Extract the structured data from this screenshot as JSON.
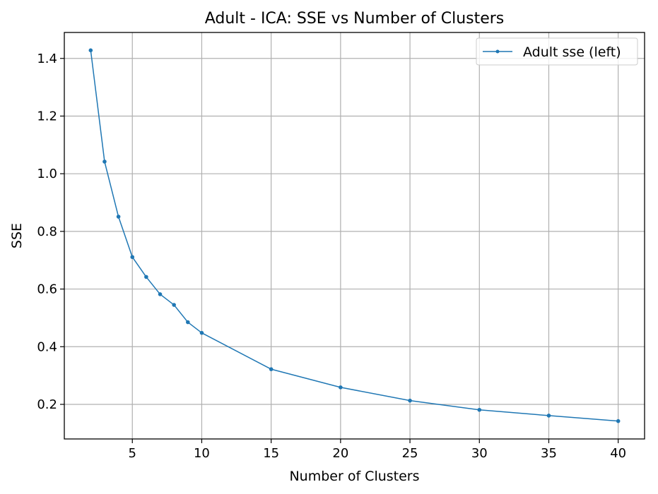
{
  "chart_data": {
    "type": "line",
    "title": "Adult - ICA: SSE vs Number of Clusters",
    "xlabel": "Number of Clusters",
    "ylabel": "SSE",
    "xlim": [
      0.1,
      41.9
    ],
    "ylim": [
      0.08,
      1.49
    ],
    "x_ticks": [
      5,
      10,
      15,
      20,
      25,
      30,
      35,
      40
    ],
    "y_ticks": [
      0.2,
      0.4,
      0.6,
      0.8,
      1.0,
      1.2,
      1.4
    ],
    "x_tick_labels": [
      "5",
      "10",
      "15",
      "20",
      "25",
      "30",
      "35",
      "40"
    ],
    "y_tick_labels": [
      "0.2",
      "0.4",
      "0.6",
      "0.8",
      "1.0",
      "1.2",
      "1.4"
    ],
    "grid": true,
    "legend_position": "top-right",
    "series": [
      {
        "name": "Adult sse (left)",
        "color": "#1f77b4",
        "marker": "circle",
        "x": [
          2,
          3,
          4,
          5,
          6,
          7,
          8,
          9,
          10,
          15,
          20,
          25,
          30,
          35,
          40
        ],
        "y": [
          1.428,
          1.042,
          0.851,
          0.711,
          0.642,
          0.582,
          0.545,
          0.485,
          0.448,
          0.322,
          0.259,
          0.213,
          0.181,
          0.161,
          0.142
        ]
      }
    ]
  }
}
